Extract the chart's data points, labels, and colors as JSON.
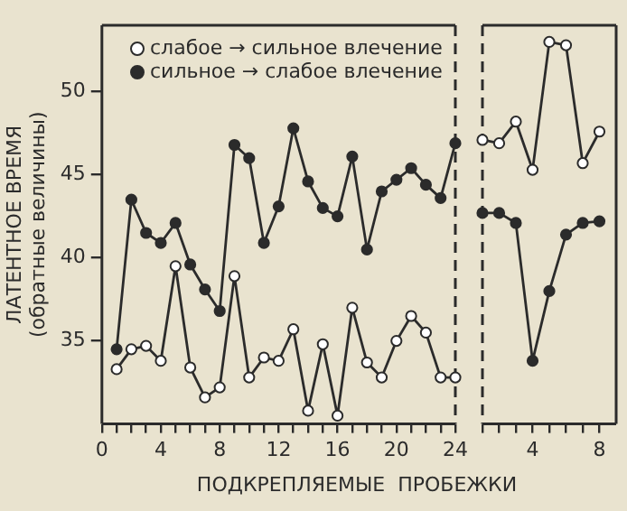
{
  "chart_data": [
    {
      "type": "line",
      "xlabel": "ПОДКРЕПЛЯЕМЫЕ  ПРОБЕЖКИ",
      "ylabel": "ЛАТЕНТНОЕ ВРЕМЯ\n(обратные величины)",
      "legend": "top",
      "marker": "circle",
      "grid": false,
      "x": [
        1,
        2,
        3,
        4,
        5,
        6,
        7,
        8,
        9,
        10,
        11,
        12,
        13,
        14,
        15,
        16,
        17,
        18,
        19,
        20,
        21,
        22,
        23,
        24
      ],
      "xlim": [
        0,
        24
      ],
      "xticks": [
        0,
        {
          "value": 1,
          "label": null
        },
        {
          "value": 2,
          "label": null
        },
        {
          "value": 3,
          "label": null
        },
        4,
        {
          "value": 5,
          "label": null
        },
        {
          "value": 6,
          "label": null
        },
        {
          "value": 7,
          "label": null
        },
        8,
        {
          "value": 9,
          "label": null
        },
        {
          "value": 10,
          "label": null
        },
        {
          "value": 11,
          "label": null
        },
        12,
        {
          "value": 13,
          "label": null
        },
        {
          "value": 14,
          "label": null
        },
        {
          "value": 15,
          "label": null
        },
        16,
        {
          "value": 17,
          "label": null
        },
        {
          "value": 18,
          "label": null
        },
        {
          "value": 19,
          "label": null
        },
        20,
        {
          "value": 21,
          "label": null
        },
        {
          "value": 22,
          "label": null
        },
        {
          "value": 23,
          "label": null
        },
        24
      ],
      "ylim": [
        30,
        54
      ],
      "yticks": [
        35,
        40,
        45,
        50
      ],
      "series": [
        {
          "name": "слабое → сильное влечение",
          "color": "#2b2b2b",
          "values": [
            33.3,
            34.5,
            34.7,
            33.8,
            39.5,
            33.4,
            31.6,
            32.2,
            38.9,
            32.8,
            34.0,
            33.8,
            35.7,
            30.8,
            34.8,
            30.5,
            37.0,
            33.7,
            32.8,
            35.0,
            36.5,
            35.5,
            32.8,
            32.8
          ]
        },
        {
          "name": "сильное → слабое влечение",
          "color": "#2b2b2b",
          "values": [
            34.5,
            43.5,
            41.5,
            40.9,
            42.1,
            39.6,
            38.1,
            36.8,
            46.8,
            46.0,
            40.9,
            43.1,
            47.8,
            44.6,
            43.0,
            42.5,
            46.1,
            40.5,
            44.0,
            44.7,
            45.4,
            44.4,
            43.6,
            46.9
          ]
        }
      ]
    },
    {
      "type": "line",
      "marker": "circle",
      "grid": false,
      "tick_labels": "x",
      "x": [
        1,
        2,
        3,
        4,
        5,
        6,
        7,
        8
      ],
      "xlim": [
        1,
        9
      ],
      "xticks": [
        {
          "value": 1,
          "label": null
        },
        {
          "value": 2,
          "label": null
        },
        {
          "value": 3,
          "label": null
        },
        4,
        {
          "value": 5,
          "label": null
        },
        {
          "value": 6,
          "label": null
        },
        {
          "value": 7,
          "label": null
        },
        8
      ],
      "ylim": [
        30,
        54
      ],
      "series": [
        {
          "color": "#2b2b2b",
          "values": [
            47.1,
            46.9,
            48.2,
            45.3,
            53.0,
            52.8,
            45.7,
            47.6
          ]
        },
        {
          "color": "#2b2b2b",
          "values": [
            42.7,
            42.7,
            42.1,
            33.8,
            38.0,
            41.4,
            42.1,
            42.2
          ]
        }
      ]
    }
  ]
}
